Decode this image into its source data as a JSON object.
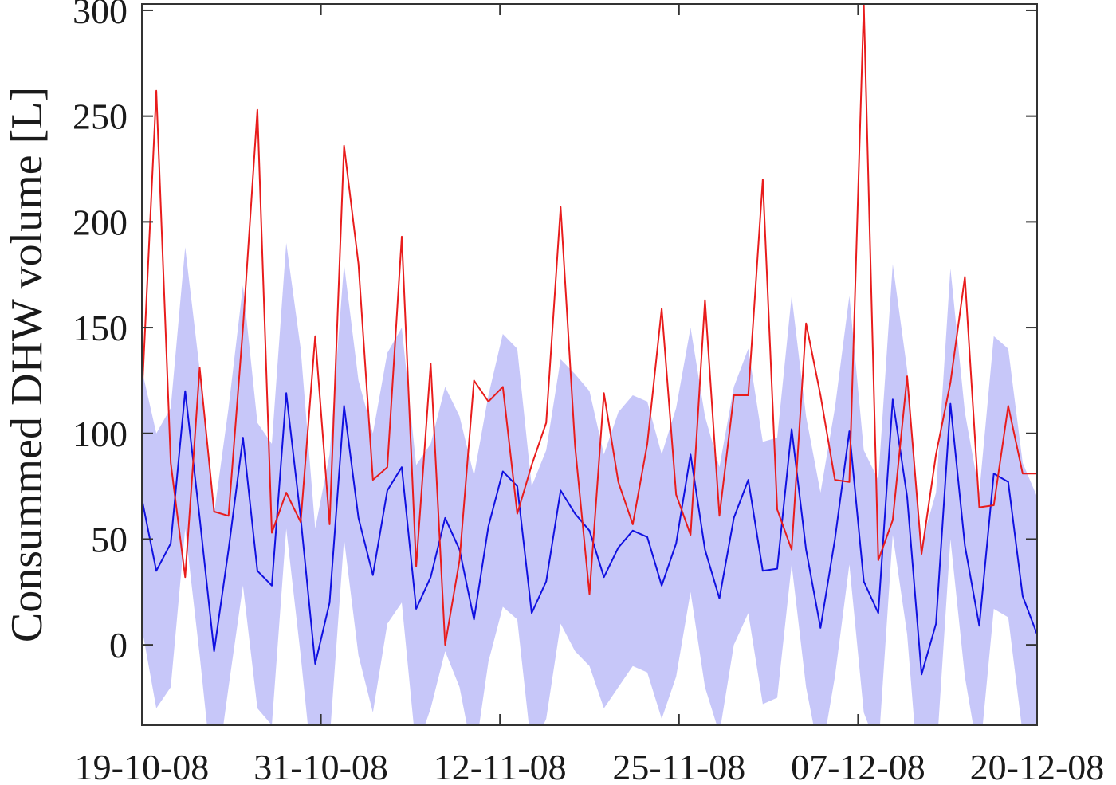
{
  "chart_data": {
    "type": "line",
    "title": "",
    "xlabel": "",
    "ylabel": "Consummed DHW volume [L]",
    "ylim": [
      -38,
      303
    ],
    "xlim": [
      0,
      60
    ],
    "x_ticks": [
      {
        "x": 0,
        "label": "19-10-08"
      },
      {
        "x": 12,
        "label": "31-10-08"
      },
      {
        "x": 24,
        "label": "12-11-08"
      },
      {
        "x": 36,
        "label": "25-11-08"
      },
      {
        "x": 48,
        "label": "07-12-08"
      },
      {
        "x": 60,
        "label": "20-12-08"
      }
    ],
    "y_ticks": [
      0,
      50,
      100,
      150,
      200,
      250,
      300
    ],
    "grid": false,
    "colors": {
      "band": "#c7c7f9",
      "mean": "#1010e0",
      "measured": "#e81c1c",
      "axis": "#333333"
    },
    "series": [
      {
        "role": "measured",
        "values": [
          117,
          262,
          86,
          32,
          131,
          63,
          61,
          150,
          253,
          53,
          72,
          58,
          146,
          57,
          236,
          180,
          78,
          84,
          193,
          37,
          133,
          0,
          40,
          125,
          115,
          122,
          62,
          85,
          105,
          207,
          94,
          24,
          119,
          77,
          57,
          95,
          159,
          71,
          52,
          163,
          61,
          118,
          118,
          220,
          64,
          45,
          152,
          118,
          78,
          77,
          303,
          40,
          59,
          127,
          43,
          90,
          124,
          174,
          65,
          66,
          113,
          81,
          81
        ]
      },
      {
        "role": "mean",
        "values": [
          69,
          35,
          48,
          120,
          60,
          -3,
          45,
          98,
          35,
          28,
          119,
          60,
          -9,
          20,
          113,
          60,
          33,
          73,
          84,
          17,
          32,
          60,
          45,
          12,
          56,
          82,
          75,
          15,
          30,
          73,
          62,
          54,
          32,
          46,
          54,
          51,
          28,
          48,
          90,
          45,
          22,
          60,
          78,
          35,
          36,
          102,
          45,
          8,
          50,
          101,
          30,
          15,
          116,
          70,
          -14,
          10,
          114,
          47,
          9,
          81,
          77,
          23,
          5
        ]
      },
      {
        "role": "band",
        "upper": [
          130,
          100,
          112,
          188,
          130,
          62,
          112,
          170,
          105,
          95,
          190,
          140,
          55,
          90,
          180,
          125,
          100,
          138,
          150,
          85,
          95,
          122,
          108,
          80,
          118,
          147,
          140,
          75,
          92,
          135,
          128,
          120,
          90,
          110,
          118,
          115,
          90,
          112,
          150,
          108,
          84,
          122,
          140,
          96,
          98,
          165,
          108,
          72,
          112,
          165,
          92,
          78,
          180,
          130,
          48,
          72,
          178,
          110,
          72,
          146,
          140,
          86,
          70
        ],
        "lower": [
          8,
          -30,
          -20,
          55,
          -5,
          -70,
          -20,
          28,
          -30,
          -38,
          55,
          -5,
          -72,
          -45,
          50,
          -5,
          -32,
          10,
          20,
          -50,
          -30,
          -3,
          -20,
          -55,
          -8,
          18,
          12,
          -50,
          -35,
          10,
          -3,
          -10,
          -30,
          -20,
          -10,
          -13,
          -35,
          -15,
          25,
          -20,
          -42,
          0,
          15,
          -28,
          -25,
          38,
          -20,
          -55,
          -15,
          38,
          -32,
          -50,
          52,
          5,
          -80,
          -55,
          50,
          -15,
          -55,
          17,
          13,
          -42,
          -60
        ]
      }
    ]
  }
}
